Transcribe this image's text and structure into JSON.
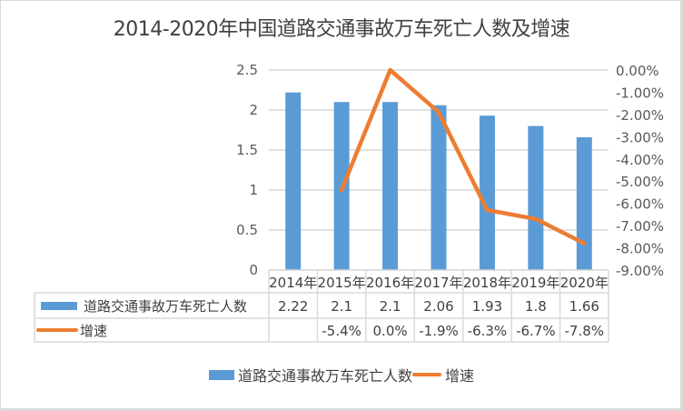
{
  "chart_data": {
    "type": "bar+line",
    "title": "2014-2020年中国道路交通事故万车死亡人数及增速",
    "categories": [
      "2014年",
      "2015年",
      "2016年",
      "2017年",
      "2018年",
      "2019年",
      "2020年"
    ],
    "series": [
      {
        "name": "道路交通事故万车死亡人数",
        "type": "bar",
        "axis": "left",
        "color": "#5b9bd5",
        "values": [
          2.22,
          2.1,
          2.1,
          2.06,
          1.93,
          1.8,
          1.66
        ],
        "labels": [
          "2.22",
          "2.1",
          "2.1",
          "2.06",
          "1.93",
          "1.8",
          "1.66"
        ]
      },
      {
        "name": "增速",
        "type": "line",
        "axis": "right",
        "color": "#ed7d31",
        "values": [
          null,
          -5.4,
          0.0,
          -1.9,
          -6.3,
          -6.7,
          -7.8
        ],
        "labels": [
          "",
          "-5.4%",
          "0.0%",
          "-1.9%",
          "-6.3%",
          "-6.7%",
          "-7.8%"
        ]
      }
    ],
    "left_axis": {
      "ticks": [
        "0",
        "0.5",
        "1",
        "1.5",
        "2",
        "2.5"
      ],
      "range": [
        0,
        2.5
      ]
    },
    "right_axis": {
      "ticks": [
        "0.00%",
        "-1.00%",
        "-2.00%",
        "-3.00%",
        "-4.00%",
        "-5.00%",
        "-6.00%",
        "-7.00%",
        "-8.00%",
        "-9.00%"
      ],
      "range": [
        -9,
        0
      ]
    },
    "grid": true,
    "data_table": true,
    "legend_position": "bottom"
  },
  "title": "2014-2020年中国道路交通事故万车死亡人数及增速",
  "legend": [
    {
      "label": "道路交通事故万车死亡人数"
    },
    {
      "label": "增速"
    }
  ]
}
